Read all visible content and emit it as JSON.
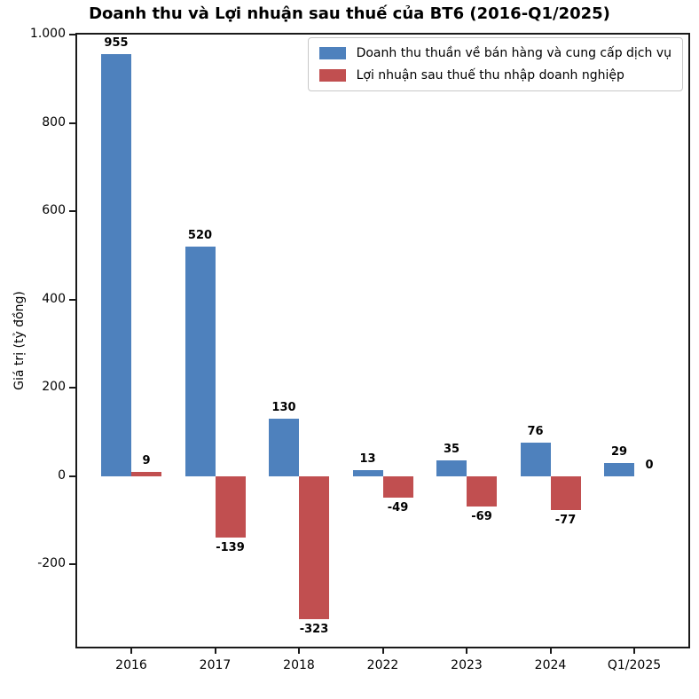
{
  "chart_data": {
    "type": "bar",
    "title": "Doanh thu và Lợi nhuận sau thuế của BT6 (2016-Q1/2025)",
    "xlabel": "",
    "ylabel": "Giá trị (tỷ đồng)",
    "categories": [
      "2016",
      "2017",
      "2018",
      "2022",
      "2023",
      "2024",
      "Q1/2025"
    ],
    "series": [
      {
        "name": "Doanh thu thuần về bán hàng và cung cấp dịch vụ",
        "color": "#4e81bd",
        "values": [
          955,
          520,
          130,
          13,
          35,
          76,
          29
        ]
      },
      {
        "name": "Lợi nhuận sau thuế thu nhập doanh nghiệp",
        "color": "#c14f50",
        "values": [
          9,
          -139,
          -323,
          -49,
          -69,
          -77,
          0
        ]
      }
    ],
    "bar_value_labels": [
      [
        "955",
        "520",
        "130",
        "13",
        "35",
        "76",
        "29"
      ],
      [
        "9",
        "-139",
        "-323",
        "-49",
        "-69",
        "-77",
        "0"
      ]
    ],
    "yticks": [
      {
        "value": 1000,
        "label": "1.000"
      },
      {
        "value": 800,
        "label": "800"
      },
      {
        "value": 600,
        "label": "600"
      },
      {
        "value": 400,
        "label": "400"
      },
      {
        "value": 200,
        "label": "200"
      },
      {
        "value": 0,
        "label": "0"
      },
      {
        "value": -200,
        "label": "-200"
      }
    ],
    "ylim": [
      -386,
      1000
    ],
    "grid": false,
    "legend_position": "upper right"
  }
}
